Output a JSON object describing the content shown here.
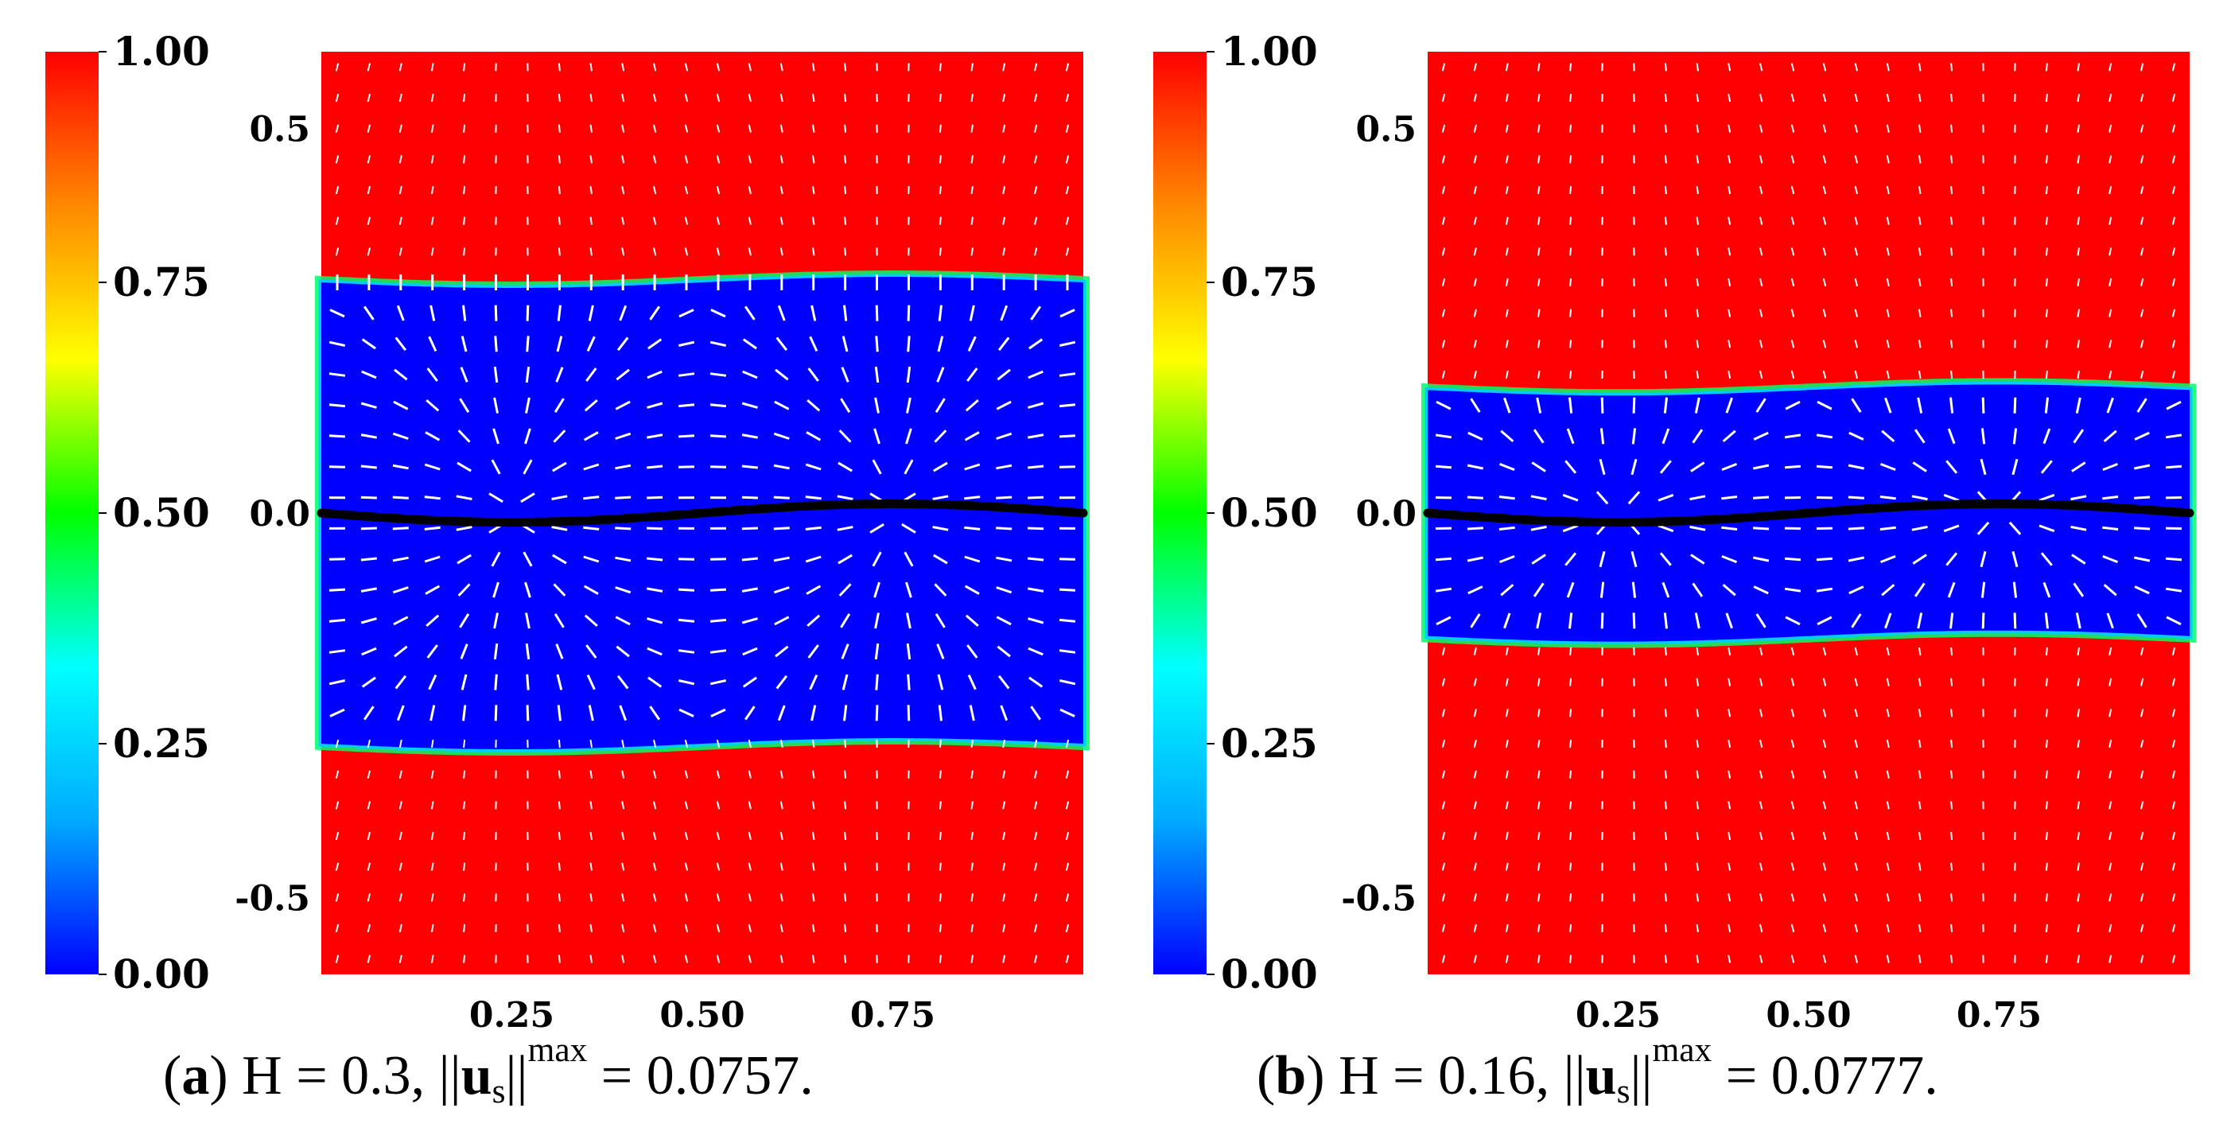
{
  "chart_data": [
    {
      "type": "heatmap",
      "panel_label": "a",
      "caption": {
        "label": "a",
        "param_name": "H",
        "param_value": "0.3",
        "norm_symbol": "u",
        "norm_sub": "s",
        "norm_sup": "max",
        "norm_value": "0.0757"
      },
      "colorbar": {
        "range": [
          0.0,
          1.0
        ],
        "ticks": [
          "0.00",
          "0.25",
          "0.50",
          "0.75",
          "1.00"
        ],
        "colormap": [
          "#0000ff",
          "#00aaff",
          "#00ffff",
          "#00ff00",
          "#ffff00",
          "#ff8800",
          "#ff0000"
        ]
      },
      "x_ticks": [
        "0.25",
        "0.50",
        "0.75"
      ],
      "y_ticks": [
        "0.5",
        "0.0",
        "-0.5"
      ],
      "x_range": [
        0.0,
        1.0
      ],
      "y_range": [
        -0.6,
        0.6
      ],
      "band_half_width": 0.3,
      "interface_amplitude": 0.012,
      "field_inside": 0.0,
      "field_outside": 1.0,
      "interface_color": "#000000",
      "arrow_color": "#ffffff"
    },
    {
      "type": "heatmap",
      "panel_label": "b",
      "caption": {
        "label": "b",
        "param_name": "H",
        "param_value": "0.16",
        "norm_symbol": "u",
        "norm_sub": "s",
        "norm_sup": "max",
        "norm_value": "0.0777"
      },
      "colorbar": {
        "range": [
          0.0,
          1.0
        ],
        "ticks": [
          "0.00",
          "0.25",
          "0.50",
          "0.75",
          "1.00"
        ],
        "colormap": [
          "#0000ff",
          "#00aaff",
          "#00ffff",
          "#00ff00",
          "#ffff00",
          "#ff8800",
          "#ff0000"
        ]
      },
      "x_ticks": [
        "0.25",
        "0.50",
        "0.75"
      ],
      "y_ticks": [
        "0.5",
        "0.0",
        "-0.5"
      ],
      "x_range": [
        0.0,
        1.0
      ],
      "y_range": [
        -0.6,
        0.6
      ],
      "band_half_width": 0.16,
      "interface_amplitude": 0.012,
      "field_inside": 0.0,
      "field_outside": 1.0,
      "interface_color": "#000000",
      "arrow_color": "#ffffff"
    }
  ]
}
